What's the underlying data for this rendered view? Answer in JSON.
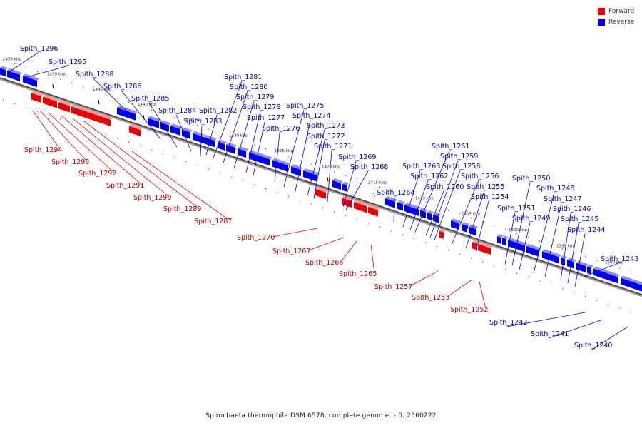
{
  "legend": {
    "forward_label": "Forward",
    "reverse_label": "Reverse"
  },
  "colors": {
    "forward": "#ee0000",
    "reverse": "#0000ee",
    "axis": "#777777",
    "forward_label": "#bb0000",
    "reverse_label": "#0000bb"
  },
  "caption": "Spirochaeta thermophila DSM 6578, complete genome. - 0..2560222",
  "ticks": [
    "1455 kbp",
    "1450 kbp",
    "1445 kbp",
    "1440 kbp",
    "1435 kbp",
    "1430 kbp",
    "1425 kbp",
    "1420 kbp",
    "1415 kbp",
    "1410 kbp",
    "1405 kbp",
    "1400 kbp",
    "1395 kbp",
    "1390 kbp"
  ],
  "reverse_genes": [
    "Spith_1296",
    "Spith_1295",
    "Spith_1288",
    "Spith_1286",
    "Spith_1285",
    "Spith_1284",
    "Spith_1283",
    "Spith_1282",
    "Spith_1281",
    "Spith_1280",
    "Spith_1279",
    "Spith_1278",
    "Spith_1277",
    "Spith_1276",
    "Spith_1275",
    "Spith_1274",
    "Spith_1273",
    "Spith_1272",
    "Spith_1271",
    "Spith_1269",
    "Spith_1268",
    "Spith_1264",
    "Spith_1263",
    "Spith_1262",
    "Spith_1261",
    "Spith_1260",
    "Spith_1259",
    "Spith_1258",
    "Spith_1256",
    "Spith_1255",
    "Spith_1254",
    "Spith_1251",
    "Spith_1250",
    "Spith_1249",
    "Spith_1248",
    "Spith_1247",
    "Spith_1246",
    "Spith_1245",
    "Spith_1244",
    "Spith_1243",
    "Spith_1242",
    "Spith_1241",
    "Spith_1240"
  ],
  "forward_genes": [
    "Spith_1294",
    "Spith_1293",
    "Spith_1292",
    "Spith_1291",
    "Spith_1290",
    "Spith_1289",
    "Spith_1287",
    "Spith_1270",
    "Spith_1267",
    "Spith_1266",
    "Spith_1265",
    "Spith_1257",
    "Spith_1253",
    "Spith_1252"
  ]
}
